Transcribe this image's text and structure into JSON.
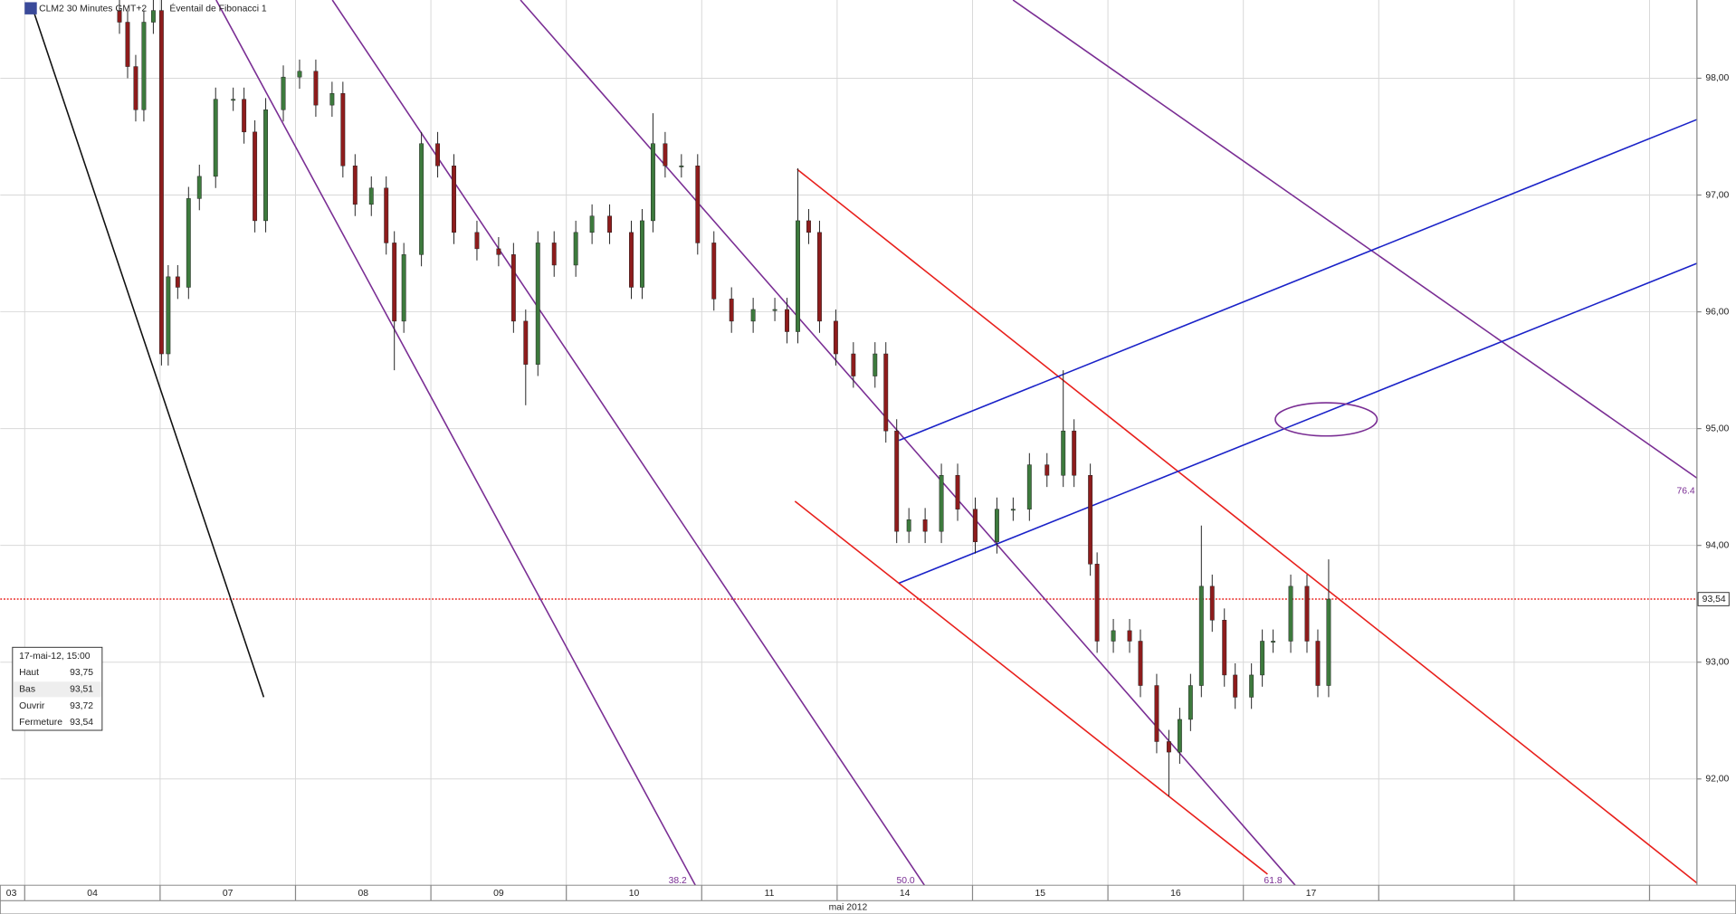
{
  "chart_data": {
    "type": "candlestick",
    "title": "CLM2 30 Minutes GMT+2",
    "study": "Éventail de Fibonacci 1",
    "x_axis_label": "mai 2012",
    "categories": [
      "03",
      "04",
      "07",
      "08",
      "09",
      "10",
      "11",
      "14",
      "15",
      "16",
      "17"
    ],
    "xlim": [
      -0.18,
      12.35
    ],
    "xticks": [
      0,
      1,
      2,
      3,
      4,
      5,
      6,
      7,
      8,
      9,
      10,
      11,
      12
    ],
    "ylim": [
      91.09,
      98.67
    ],
    "yticks": [
      {
        "value": 92,
        "label": "92,00"
      },
      {
        "value": 93,
        "label": "93,00"
      },
      {
        "value": 94,
        "label": "94,00"
      },
      {
        "value": 95,
        "label": "95,00"
      },
      {
        "value": 96,
        "label": "96,00"
      },
      {
        "value": 97,
        "label": "97,00"
      },
      {
        "value": 98,
        "label": "98,00"
      }
    ],
    "grid": true,
    "up_color": "#3d7a3d",
    "down_color": "#8e1c1c",
    "last_price": {
      "value": 93.54,
      "label": "93,54"
    },
    "fib_labels": [
      "38.2",
      "50.0",
      "61.8",
      "76.4"
    ],
    "x": [
      0.7,
      0.76,
      0.82,
      0.88,
      0.95,
      1.01,
      1.06,
      1.13,
      1.21,
      1.29,
      1.41,
      1.54,
      1.62,
      1.7,
      1.78,
      1.91,
      2.03,
      2.15,
      2.27,
      2.35,
      2.44,
      2.56,
      2.67,
      2.73,
      2.8,
      2.93,
      3.05,
      3.17,
      3.34,
      3.5,
      3.61,
      3.7,
      3.79,
      3.91,
      4.07,
      4.19,
      4.32,
      4.48,
      4.56,
      4.64,
      4.73,
      4.85,
      4.97,
      5.09,
      5.22,
      5.38,
      5.54,
      5.63,
      5.71,
      5.79,
      5.87,
      5.99,
      6.12,
      6.28,
      6.36,
      6.44,
      6.53,
      6.65,
      6.77,
      6.89,
      7.02,
      7.18,
      7.3,
      7.42,
      7.55,
      7.67,
      7.75,
      7.87,
      7.92,
      8.04,
      8.16,
      8.24,
      8.36,
      8.45,
      8.53,
      8.61,
      8.69,
      8.77,
      8.86,
      8.94,
      9.06,
      9.14,
      9.22,
      9.35,
      9.47,
      9.55,
      9.63
    ],
    "open": [
      98.58,
      98.48,
      98.1,
      97.73,
      98.48,
      98.58,
      95.64,
      96.3,
      96.21,
      96.97,
      97.16,
      97.82,
      97.82,
      97.54,
      96.78,
      97.73,
      98.01,
      98.06,
      97.77,
      97.87,
      97.25,
      96.92,
      97.06,
      96.59,
      95.92,
      96.49,
      97.44,
      97.25,
      96.68,
      96.54,
      96.49,
      95.92,
      95.55,
      96.59,
      96.4,
      96.68,
      96.82,
      96.68,
      96.21,
      96.78,
      97.44,
      97.25,
      97.25,
      96.59,
      96.11,
      95.92,
      96.02,
      96.02,
      95.83,
      96.78,
      96.68,
      95.92,
      95.64,
      95.45,
      95.64,
      94.98,
      94.12,
      94.22,
      94.12,
      94.6,
      94.31,
      94.03,
      94.31,
      94.31,
      94.69,
      94.6,
      94.98,
      94.6,
      93.84,
      93.18,
      93.27,
      93.18,
      92.8,
      92.32,
      92.23,
      92.51,
      92.8,
      93.65,
      93.36,
      92.89,
      92.7,
      92.89,
      93.18,
      93.18,
      93.65,
      93.18,
      92.8
    ],
    "high": [
      98.68,
      98.58,
      98.2,
      98.58,
      98.68,
      98.68,
      96.4,
      96.4,
      97.07,
      97.26,
      97.92,
      97.92,
      97.92,
      97.64,
      97.83,
      98.11,
      98.16,
      98.16,
      97.97,
      97.97,
      97.35,
      97.16,
      97.16,
      96.69,
      96.59,
      97.54,
      97.54,
      97.35,
      96.78,
      96.64,
      96.59,
      96.02,
      96.69,
      96.69,
      96.78,
      96.92,
      96.92,
      96.78,
      96.88,
      97.7,
      97.54,
      97.35,
      97.35,
      96.69,
      96.21,
      96.12,
      96.12,
      96.12,
      97.23,
      96.88,
      96.78,
      96.02,
      95.74,
      95.74,
      95.74,
      95.08,
      94.32,
      94.32,
      94.7,
      94.7,
      94.41,
      94.41,
      94.41,
      94.79,
      94.79,
      95.5,
      95.08,
      94.7,
      93.94,
      93.37,
      93.37,
      93.28,
      92.9,
      92.42,
      92.61,
      92.9,
      94.17,
      93.75,
      93.46,
      92.99,
      92.99,
      93.28,
      93.28,
      93.75,
      93.75,
      93.28,
      93.88
    ],
    "low": [
      98.38,
      98.0,
      97.63,
      97.63,
      98.38,
      95.54,
      95.54,
      96.11,
      96.11,
      96.87,
      97.06,
      97.72,
      97.44,
      96.68,
      96.68,
      97.63,
      97.91,
      97.67,
      97.67,
      97.15,
      96.82,
      96.82,
      96.49,
      95.5,
      95.82,
      96.39,
      97.15,
      96.58,
      96.44,
      96.39,
      95.82,
      95.2,
      95.45,
      96.3,
      96.3,
      96.58,
      96.58,
      96.11,
      96.11,
      96.68,
      97.15,
      97.15,
      96.49,
      96.01,
      95.82,
      95.82,
      95.92,
      95.73,
      95.73,
      96.58,
      95.82,
      95.54,
      95.35,
      95.35,
      94.88,
      94.02,
      94.02,
      94.02,
      94.02,
      94.21,
      93.93,
      93.93,
      94.21,
      94.21,
      94.5,
      94.5,
      94.5,
      93.74,
      93.08,
      93.08,
      93.08,
      92.7,
      92.22,
      91.85,
      92.13,
      92.41,
      92.7,
      93.26,
      92.79,
      92.6,
      92.6,
      92.79,
      93.08,
      93.08,
      93.08,
      92.7,
      92.7
    ],
    "close": [
      98.48,
      98.1,
      97.73,
      98.48,
      98.58,
      95.64,
      96.3,
      96.21,
      96.97,
      97.16,
      97.82,
      97.82,
      97.54,
      96.78,
      97.73,
      98.01,
      98.06,
      97.77,
      97.87,
      97.25,
      96.92,
      97.06,
      96.59,
      95.92,
      96.49,
      97.44,
      97.25,
      96.68,
      96.54,
      96.49,
      95.92,
      95.55,
      96.59,
      96.4,
      96.68,
      96.82,
      96.68,
      96.21,
      96.78,
      97.44,
      97.25,
      97.25,
      96.59,
      96.11,
      95.92,
      96.02,
      96.02,
      95.83,
      96.78,
      96.68,
      95.92,
      95.64,
      95.45,
      95.64,
      94.98,
      94.12,
      94.22,
      94.12,
      94.6,
      94.31,
      94.03,
      94.31,
      94.31,
      94.69,
      94.6,
      94.98,
      94.6,
      93.84,
      93.18,
      93.27,
      93.18,
      92.8,
      92.32,
      92.23,
      92.51,
      92.8,
      93.65,
      93.36,
      92.89,
      92.7,
      92.89,
      93.18,
      93.18,
      93.65,
      93.18,
      92.8,
      93.54
    ]
  },
  "info_box": {
    "date": "17-mai-12, 15:00",
    "rows": [
      [
        "Haut",
        "93,75"
      ],
      [
        "Bas",
        "93,51"
      ],
      [
        "Ouvrir",
        "93,72"
      ],
      [
        "Fermeture",
        "93,54"
      ]
    ]
  }
}
